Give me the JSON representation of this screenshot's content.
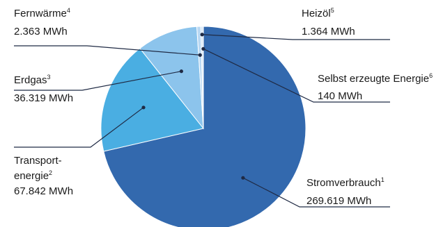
{
  "chart_data": {
    "type": "pie",
    "unit": "MWh",
    "slices": [
      {
        "name": "Stromverbrauch",
        "note": "1",
        "value": 269619,
        "value_label": "269.619 MWh",
        "color": "#3369ae"
      },
      {
        "name": "Transport-",
        "name2": "energie",
        "note": "2",
        "value": 67842,
        "value_label": "67.842 MWh",
        "color": "#4aaee2"
      },
      {
        "name": "Erdgas",
        "note": "3",
        "value": 36319,
        "value_label": "36.319 MWh",
        "color": "#8cc4ec"
      },
      {
        "name": "Fernwärme",
        "note": "4",
        "value": 2363,
        "value_label": "2.363 MWh",
        "color": "#b9d8f3"
      },
      {
        "name": "Heizöl",
        "note": "5",
        "value": 1364,
        "value_label": "1.364 MWh",
        "color": "#d4e6f7"
      },
      {
        "name": "Selbst erzeugte Energie",
        "note": "6",
        "value": 140,
        "value_label": "140 MWh",
        "color": "#e7f1fb"
      }
    ],
    "start_angle_deg": 0,
    "direction": "clockwise",
    "legend": "none"
  },
  "colors": {
    "leader_line": "#1f2a44",
    "text": "#1a1a1a",
    "slice_border": "#ffffff"
  }
}
